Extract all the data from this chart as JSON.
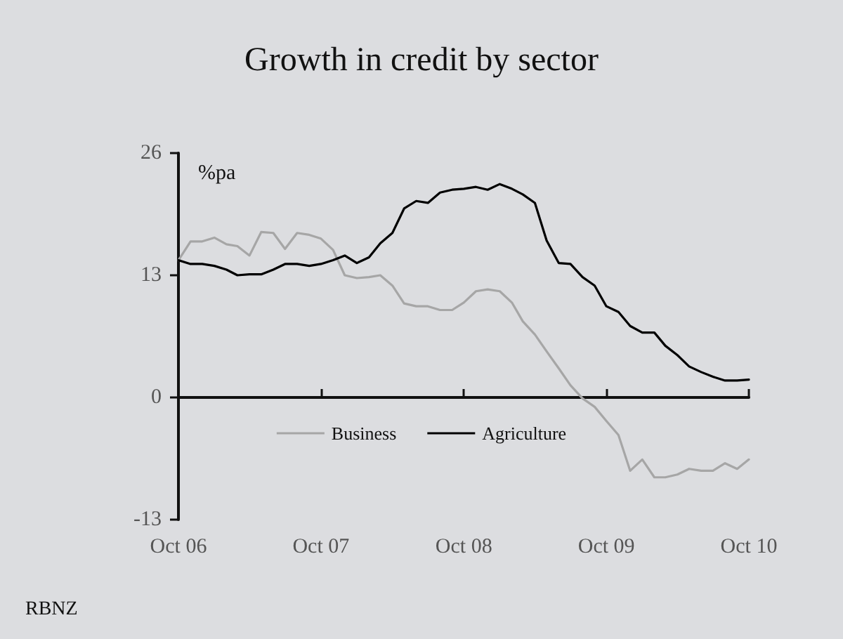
{
  "chart_data": {
    "type": "line",
    "title": "Growth in credit by sector",
    "ylabel": "%pa",
    "annotations": [
      "RBNZ"
    ],
    "x": [
      "2006-10",
      "2006-11",
      "2006-12",
      "2007-01",
      "2007-02",
      "2007-03",
      "2007-04",
      "2007-05",
      "2007-06",
      "2007-07",
      "2007-08",
      "2007-09",
      "2007-10",
      "2007-11",
      "2007-12",
      "2008-01",
      "2008-02",
      "2008-03",
      "2008-04",
      "2008-05",
      "2008-06",
      "2008-07",
      "2008-08",
      "2008-09",
      "2008-10",
      "2008-11",
      "2008-12",
      "2009-01",
      "2009-02",
      "2009-03",
      "2009-04",
      "2009-05",
      "2009-06",
      "2009-07",
      "2009-08",
      "2009-09",
      "2009-10",
      "2009-11",
      "2009-12",
      "2010-01",
      "2010-02",
      "2010-03",
      "2010-04",
      "2010-05",
      "2010-06",
      "2010-07",
      "2010-08",
      "2010-09",
      "2010-10"
    ],
    "series": [
      {
        "name": "Business",
        "color": "#a6a6a6",
        "values": [
          14.6,
          16.6,
          16.6,
          17.0,
          16.3,
          16.1,
          15.1,
          17.6,
          17.5,
          15.8,
          17.5,
          17.3,
          16.9,
          15.7,
          13.0,
          12.7,
          12.8,
          13.0,
          11.9,
          10.0,
          9.7,
          9.7,
          9.3,
          9.3,
          10.1,
          11.3,
          11.5,
          11.3,
          10.1,
          8.1,
          6.7,
          4.9,
          3.1,
          1.3,
          -0.1,
          -1.0,
          -2.5,
          -4.0,
          -7.8,
          -6.6,
          -8.5,
          -8.5,
          -8.2,
          -7.6,
          -7.8,
          -7.8,
          -7.0,
          -7.6,
          -6.6
        ]
      },
      {
        "name": "Agriculture",
        "color": "#000000",
        "values": [
          14.6,
          14.2,
          14.2,
          14.0,
          13.6,
          13.0,
          13.1,
          13.1,
          13.6,
          14.2,
          14.2,
          14.0,
          14.2,
          14.6,
          15.1,
          14.3,
          14.9,
          16.4,
          17.5,
          20.1,
          20.9,
          20.7,
          21.8,
          22.1,
          22.2,
          22.4,
          22.1,
          22.7,
          22.2,
          21.6,
          20.7,
          16.7,
          14.3,
          14.2,
          12.8,
          11.9,
          9.7,
          9.1,
          7.6,
          6.9,
          6.9,
          5.5,
          4.5,
          3.3,
          2.7,
          2.2,
          1.8,
          1.8,
          1.9
        ]
      }
    ],
    "xlim": [
      "2006-10",
      "2010-10"
    ],
    "xticks": [
      {
        "value": "2006-10",
        "label": "Oct 06"
      },
      {
        "value": "2007-10",
        "label": "Oct 07"
      },
      {
        "value": "2008-10",
        "label": "Oct 08"
      },
      {
        "value": "2009-10",
        "label": "Oct 09"
      },
      {
        "value": "2010-10",
        "label": "Oct 10"
      }
    ],
    "ylim": [
      -13,
      26
    ],
    "yticks": [
      -13,
      0,
      13,
      26
    ],
    "legend": "bottom",
    "marker": "none",
    "line_style": "solid"
  }
}
